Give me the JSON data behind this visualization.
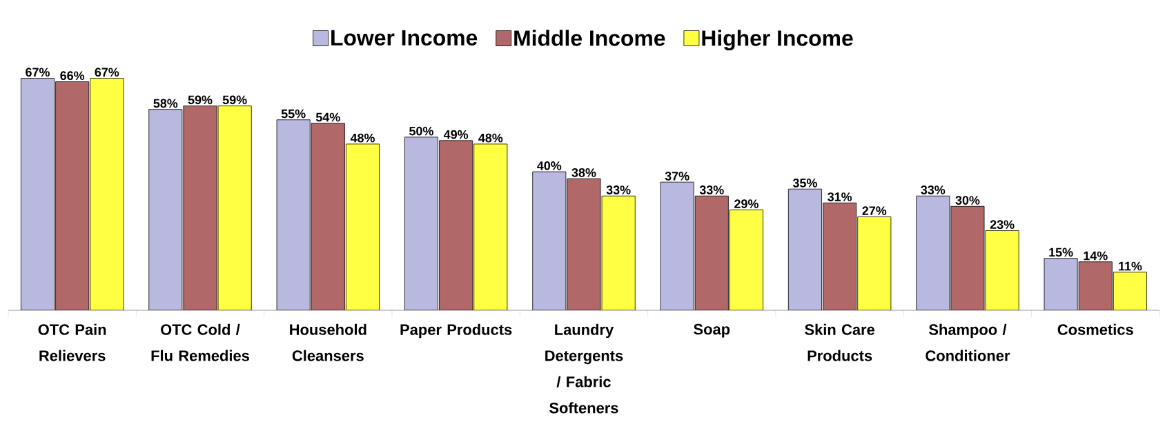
{
  "chart_data": {
    "type": "bar",
    "legend": "top",
    "categories": [
      "OTC Pain Relievers",
      "OTC Cold / Flu Remedies",
      "Household Cleansers",
      "Paper Products",
      "Laundry Detergents / Fabric Softeners",
      "Soap",
      "Skin Care Products",
      "Shampoo / Conditioner",
      "Cosmetics"
    ],
    "series": [
      {
        "name": "Lower Income",
        "color": "#b8b8e0",
        "values": [
          67,
          58,
          55,
          50,
          40,
          37,
          35,
          33,
          15
        ],
        "value_labels": [
          "67%",
          "58%",
          "55%",
          "50%",
          "40%",
          "37%",
          "35%",
          "33%",
          "15%"
        ]
      },
      {
        "name": "Middle Income",
        "color": "#b06868",
        "values": [
          66,
          59,
          54,
          49,
          38,
          33,
          31,
          30,
          14
        ],
        "value_labels": [
          "66%",
          "59%",
          "54%",
          "49%",
          "38%",
          "33%",
          "31%",
          "30%",
          "14%"
        ]
      },
      {
        "name": "Higher Income",
        "color": "#ffff44",
        "values": [
          67,
          59,
          48,
          48,
          33,
          29,
          27,
          23,
          11
        ],
        "value_labels": [
          "67%",
          "59%",
          "48%",
          "48%",
          "33%",
          "29%",
          "27%",
          "23%",
          "11%"
        ]
      }
    ]
  }
}
